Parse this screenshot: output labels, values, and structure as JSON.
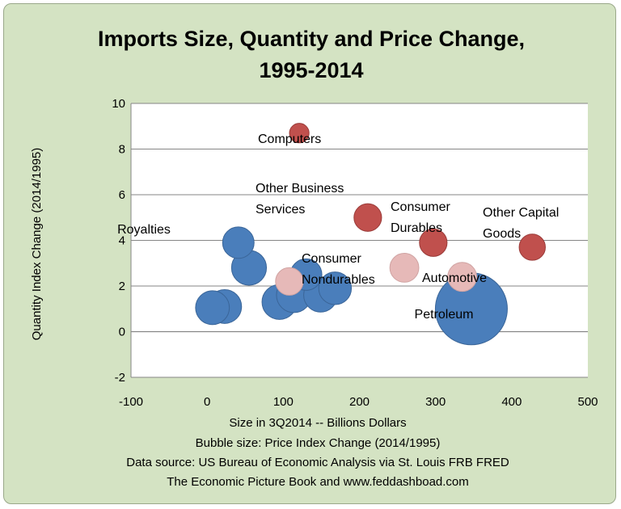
{
  "chart_data": {
    "type": "bubble",
    "title": [
      "Imports Size, Quantity and Price Change,",
      "1995-2014"
    ],
    "xlabel": "Size in 3Q2014 -- Billions Dollars",
    "ylabel": "Quantity Index Change (2014/1995)",
    "notes": [
      "Bubble  size: Price Index Change (2014/1995)",
      "Data source: US  Bureau of Economic Analysis via St. Louis FRB FRED",
      "The Economic Picture Book and www.feddashboad.com"
    ],
    "xlim": [
      -100,
      500
    ],
    "ylim": [
      -2,
      10
    ],
    "xticks": [
      -100,
      0,
      100,
      200,
      300,
      400,
      500
    ],
    "yticks": [
      -2,
      0,
      2,
      4,
      6,
      8,
      10
    ],
    "grid": "horizontal",
    "colors": {
      "background": "#d4e3c3",
      "plot_area": "#ffffff",
      "price_decline": "#4a7ebb",
      "price_rise": "#c0504d",
      "moderate_rise": "#e6b9b8",
      "gridline": "#868686"
    },
    "bubbles": [
      {
        "x": 347,
        "y": 1.0,
        "size": 13.6,
        "label": "Petroleum",
        "color": "price_decline"
      },
      {
        "x": 23,
        "y": 1.1,
        "size": 3.0,
        "label": "",
        "color": "price_decline"
      },
      {
        "x": 7,
        "y": 1.05,
        "size": 3.0,
        "label": "",
        "color": "price_decline"
      },
      {
        "x": 95,
        "y": 1.3,
        "size": 3.2,
        "label": "",
        "color": "price_decline"
      },
      {
        "x": 55,
        "y": 2.8,
        "size": 3.2,
        "label": "",
        "color": "price_decline"
      },
      {
        "x": 41,
        "y": 3.9,
        "size": 2.6,
        "label": "Royalties",
        "color": "price_decline"
      },
      {
        "x": 108,
        "y": 2.2,
        "size": 2.0,
        "label": "",
        "color": "moderate_rise"
      },
      {
        "x": 130,
        "y": 2.5,
        "size": 2.6,
        "label": "",
        "color": "price_decline"
      },
      {
        "x": 168,
        "y": 1.9,
        "size": 2.8,
        "label": "",
        "color": "price_decline"
      },
      {
        "x": 149,
        "y": 1.6,
        "size": 3.0,
        "label": "",
        "color": "price_decline"
      },
      {
        "x": 114,
        "y": 1.6,
        "size": 3.2,
        "label": "",
        "color": "price_decline"
      },
      {
        "x": 121,
        "y": 8.7,
        "size": 1.0,
        "label": "Computers",
        "color": "price_rise"
      },
      {
        "x": 211,
        "y": 5.0,
        "size": 2.0,
        "label": "Other Business Services",
        "color": "price_rise"
      },
      {
        "x": 297,
        "y": 3.9,
        "size": 2.0,
        "label": "Consumer Durables",
        "color": "price_rise"
      },
      {
        "x": 427,
        "y": 3.7,
        "size": 1.8,
        "label": "Other Capital Goods",
        "color": "price_rise"
      },
      {
        "x": 259,
        "y": 2.8,
        "size": 2.2,
        "label": "Consumer Nondurables",
        "color": "moderate_rise"
      },
      {
        "x": 335,
        "y": 2.4,
        "size": 2.2,
        "label": "Automotive",
        "color": "moderate_rise"
      }
    ]
  }
}
